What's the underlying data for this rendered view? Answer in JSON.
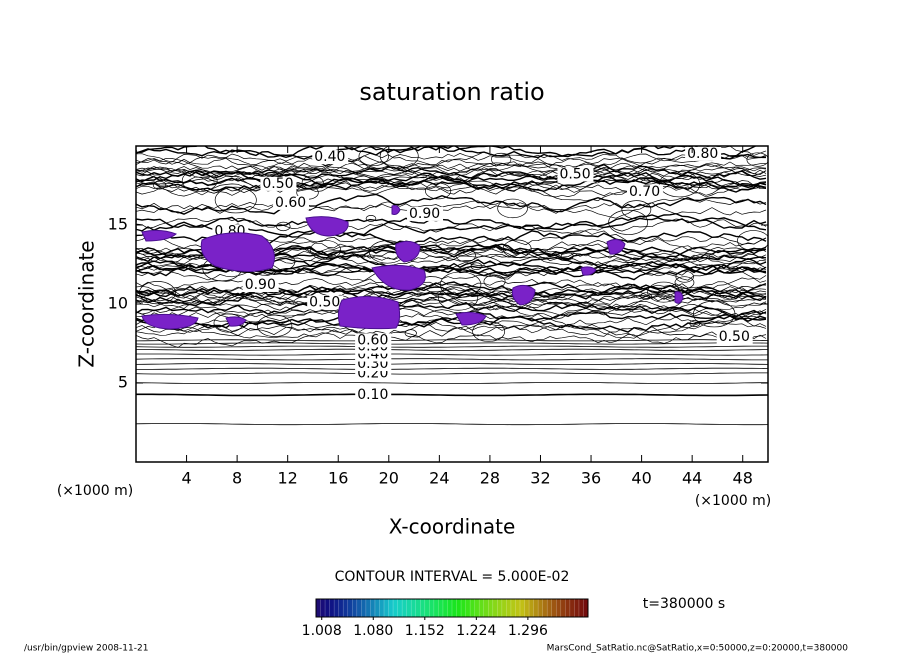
{
  "chart_data": {
    "type": "contour",
    "title": "saturation ratio",
    "x_label": "X-coordinate",
    "y_label": "Z-coordinate",
    "x_unit_left": "(×1000 m)",
    "x_unit_right": "(×1000 m)",
    "xlim": [
      0,
      50
    ],
    "ylim": [
      0,
      20
    ],
    "xticks": [
      4,
      8,
      12,
      16,
      20,
      24,
      28,
      32,
      36,
      40,
      44,
      48
    ],
    "yticks": [
      5,
      10,
      15
    ],
    "contour_interval": "CONTOUR INTERVAL = 5.000E-02",
    "time_label": "t=380000 s",
    "footer_left": "/usr/bin/gpview   2008-11-21",
    "footer_right": "MarsCond_SatRatio.nc@SatRatio,x=0:50000,z=0:20000,t=380000",
    "contour_lines": [
      {
        "value": 0.05,
        "z": 2.4
      },
      {
        "value": 0.1,
        "z": 4.25
      },
      {
        "value": 0.15,
        "z": 5.0
      },
      {
        "value": 0.2,
        "z": 5.6
      },
      {
        "value": 0.25,
        "z": 5.9
      },
      {
        "value": 0.3,
        "z": 6.2
      },
      {
        "value": 0.35,
        "z": 6.5
      },
      {
        "value": 0.4,
        "z": 6.8
      },
      {
        "value": 0.45,
        "z": 7.1
      },
      {
        "value": 0.5,
        "z": 7.3
      },
      {
        "value": 0.55,
        "z": 7.5
      },
      {
        "value": 0.6,
        "z": 7.7
      }
    ],
    "contour_labels": [
      {
        "value": 0.1,
        "label": "0.10",
        "x": 17.5,
        "z": 4.25
      },
      {
        "value": 0.2,
        "label": "0.20",
        "x": 17.5,
        "z": 5.6
      },
      {
        "value": 0.3,
        "label": "0.30",
        "x": 17.5,
        "z": 6.2
      },
      {
        "value": 0.4,
        "label": "0.40",
        "x": 17.5,
        "z": 6.8
      },
      {
        "value": 0.5,
        "label": "0.50",
        "x": 17.5,
        "z": 7.3
      },
      {
        "value": 0.6,
        "label": "0.60",
        "x": 17.5,
        "z": 7.7
      },
      {
        "value": 0.4,
        "label": "0.40",
        "x": 14.1,
        "z": 19.3
      },
      {
        "value": 0.5,
        "label": "0.50",
        "x": 10.0,
        "z": 17.6
      },
      {
        "value": 0.6,
        "label": "0.60",
        "x": 11.0,
        "z": 16.4
      },
      {
        "value": 0.5,
        "label": "0.50",
        "x": 33.5,
        "z": 18.2
      },
      {
        "value": 0.7,
        "label": "0.70",
        "x": 39.0,
        "z": 17.1
      },
      {
        "value": 0.8,
        "label": "0.80",
        "x": 43.6,
        "z": 19.5
      },
      {
        "value": 0.9,
        "label": "0.90",
        "x": 21.6,
        "z": 15.7
      },
      {
        "value": 0.8,
        "label": "0.80",
        "x": 6.2,
        "z": 14.6
      },
      {
        "value": 0.9,
        "label": "0.90",
        "x": 8.6,
        "z": 11.2
      },
      {
        "value": 0.5,
        "label": "0.50",
        "x": 13.7,
        "z": 10.1
      },
      {
        "value": 0.5,
        "label": "0.50",
        "x": 46.1,
        "z": 7.9
      }
    ],
    "clim": [
      1.0,
      1.38
    ],
    "colorbar_ticks": [
      1.008,
      {
        "value": 1.08,
        "label": "1.080"
      },
      1.152,
      1.224,
      1.296
    ]
  }
}
